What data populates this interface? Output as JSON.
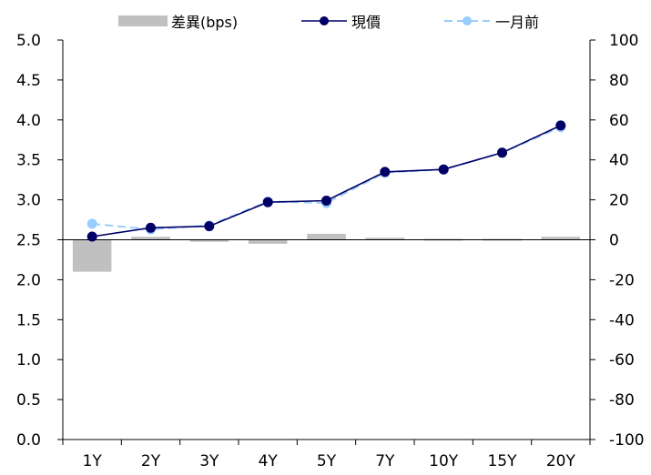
{
  "chart_data": {
    "type": "bar+line",
    "categories": [
      "1Y",
      "2Y",
      "3Y",
      "4Y",
      "5Y",
      "7Y",
      "10Y",
      "15Y",
      "20Y"
    ],
    "legend": {
      "placement": "top-center",
      "items": [
        {
          "label": "差異(bps)",
          "kind": "bar",
          "color": "#c0c0c0"
        },
        {
          "label": "現價",
          "kind": "line-marker",
          "color": "#000066"
        },
        {
          "label": "一月前",
          "kind": "dashed-line-marker",
          "color": "#99ccff"
        }
      ]
    },
    "left_axis": {
      "ylim": [
        0.0,
        5.0
      ],
      "ticks": [
        "0.0",
        "0.5",
        "1.0",
        "1.5",
        "2.0",
        "2.5",
        "3.0",
        "3.5",
        "4.0",
        "4.5",
        "5.0"
      ]
    },
    "right_axis": {
      "ylim": [
        -100,
        100
      ],
      "ticks": [
        "-100",
        "-80",
        "-60",
        "-40",
        "-20",
        "0",
        "20",
        "40",
        "60",
        "80",
        "100"
      ]
    },
    "series": [
      {
        "name": "差異(bps)",
        "axis": "right",
        "type": "bar",
        "color": "#c0c0c0",
        "values": [
          -16,
          1.5,
          -1,
          -2,
          3,
          1,
          0.3,
          -0.3,
          1.5
        ]
      },
      {
        "name": "現價",
        "axis": "left",
        "type": "line",
        "color": "#000066",
        "values": [
          2.54,
          2.65,
          2.67,
          2.97,
          2.99,
          3.35,
          3.38,
          3.59,
          3.93
        ]
      },
      {
        "name": "一月前",
        "axis": "left",
        "type": "line-dashed",
        "color": "#99ccff",
        "values": [
          2.7,
          2.63,
          2.68,
          2.98,
          2.96,
          3.34,
          3.38,
          3.59,
          3.91
        ]
      }
    ],
    "grid": false
  }
}
